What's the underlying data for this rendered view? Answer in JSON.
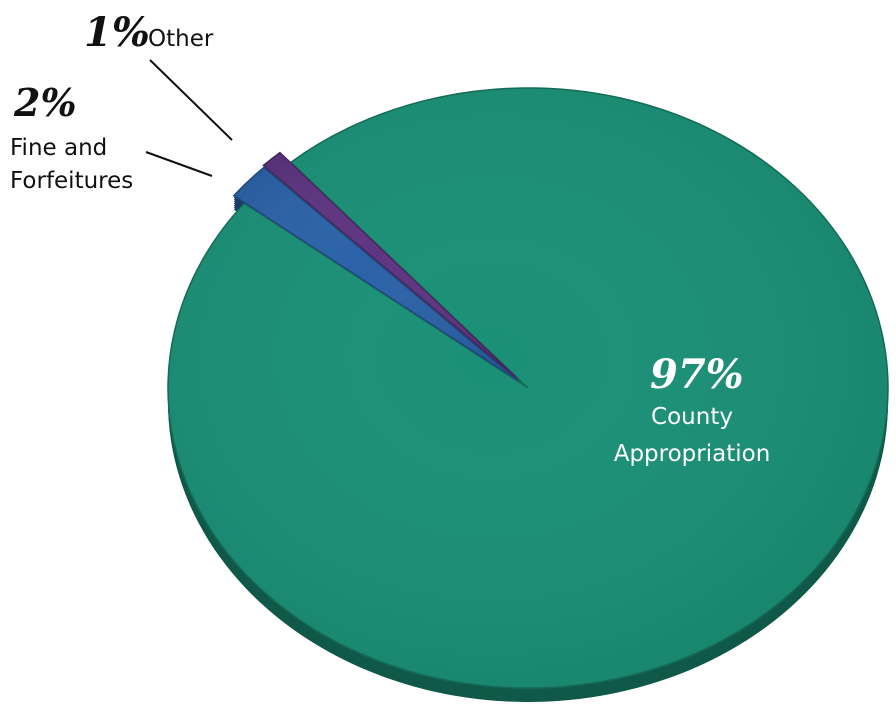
{
  "chart_data": {
    "type": "pie",
    "slices": [
      {
        "label": "County Appropriation",
        "lines": [
          "County",
          "Appropriation"
        ],
        "percent_label": "97%",
        "value": 97,
        "color": "#1a9076"
      },
      {
        "label": "Fine and Forfeitures",
        "lines": [
          "Fine and",
          "Forfeitures"
        ],
        "percent_label": "2%",
        "value": 2,
        "color": "#2b62a8"
      },
      {
        "label": "Other",
        "lines": [
          "Other"
        ],
        "percent_label": "1%",
        "value": 1,
        "color": "#5e3581"
      }
    ],
    "title": "",
    "legend": "none"
  }
}
